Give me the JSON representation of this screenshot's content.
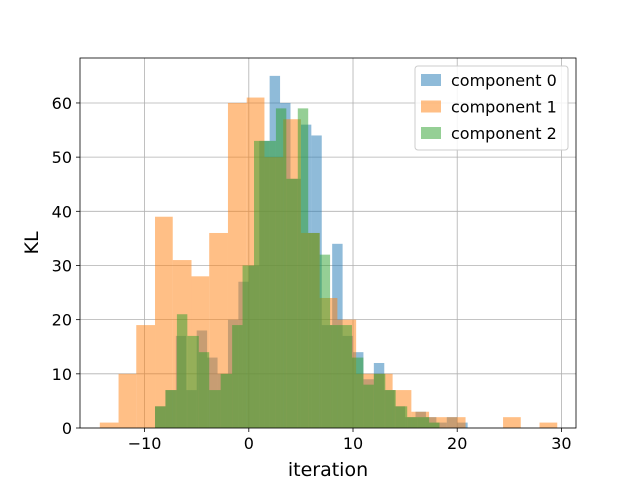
{
  "chart_data": {
    "type": "bar",
    "subtype": "overlaid-histogram",
    "title": "",
    "xlabel": "iteration",
    "ylabel": "KL",
    "xlim": [
      -16.2,
      31.4
    ],
    "ylim": [
      0,
      68.3
    ],
    "xticks": [
      -10,
      0,
      10,
      20,
      30
    ],
    "yticks": [
      0,
      10,
      20,
      30,
      40,
      50,
      60
    ],
    "grid": true,
    "legend_position": "top-right",
    "opacity": 0.5,
    "series": [
      {
        "name": "component 0",
        "color": "#1f77b4",
        "bins": [
          [
            -9.0,
            -8.0,
            4
          ],
          [
            -8.0,
            -7.0,
            7
          ],
          [
            -7.0,
            -6.0,
            17
          ],
          [
            -6.0,
            -5.0,
            7
          ],
          [
            -5.0,
            -4.0,
            18
          ],
          [
            -4.0,
            -3.0,
            13
          ],
          [
            -3.0,
            -2.0,
            10
          ],
          [
            -2.0,
            -1.0,
            20
          ],
          [
            -1.0,
            0.0,
            27
          ],
          [
            0.0,
            1.0,
            30
          ],
          [
            1.0,
            2.0,
            53
          ],
          [
            2.0,
            3.0,
            65
          ],
          [
            3.0,
            4.0,
            60
          ],
          [
            4.0,
            5.0,
            46
          ],
          [
            5.0,
            6.0,
            56
          ],
          [
            6.0,
            7.0,
            54
          ],
          [
            7.0,
            8.0,
            19
          ],
          [
            8.0,
            9.0,
            34
          ],
          [
            9.0,
            10.0,
            17
          ],
          [
            10.0,
            11.0,
            14
          ],
          [
            11.0,
            12.0,
            9
          ],
          [
            12.0,
            13.0,
            12
          ],
          [
            13.0,
            14.0,
            7
          ],
          [
            14.0,
            15.0,
            4
          ],
          [
            15.0,
            16.0,
            2
          ],
          [
            16.0,
            17.0,
            3
          ],
          [
            17.0,
            18.0,
            2
          ],
          [
            18.0,
            19.0,
            1
          ],
          [
            19.0,
            20.0,
            2
          ],
          [
            20.0,
            21.0,
            1
          ]
        ]
      },
      {
        "name": "component 1",
        "color": "#ff7f0e",
        "bins": [
          [
            -14.3,
            -12.5,
            1
          ],
          [
            -12.5,
            -10.8,
            10
          ],
          [
            -10.8,
            -9.0,
            19
          ],
          [
            -9.0,
            -7.3,
            39
          ],
          [
            -7.3,
            -5.5,
            31
          ],
          [
            -5.5,
            -3.8,
            28
          ],
          [
            -3.8,
            -2.0,
            36
          ],
          [
            -2.0,
            -0.2,
            60
          ],
          [
            -0.2,
            1.5,
            61
          ],
          [
            1.5,
            3.3,
            50
          ],
          [
            3.3,
            5.0,
            57
          ],
          [
            5.0,
            6.8,
            36
          ],
          [
            6.8,
            8.5,
            24
          ],
          [
            8.5,
            10.3,
            20
          ],
          [
            10.3,
            12.1,
            10
          ],
          [
            12.1,
            13.8,
            10
          ],
          [
            13.8,
            15.6,
            7
          ],
          [
            15.6,
            17.3,
            3
          ],
          [
            17.3,
            19.1,
            2
          ],
          [
            19.1,
            20.8,
            2
          ],
          [
            24.4,
            26.1,
            2
          ],
          [
            27.9,
            29.6,
            1
          ]
        ]
      },
      {
        "name": "component 2",
        "color": "#2ca02c",
        "bins": [
          [
            -9.0,
            -8.0,
            4
          ],
          [
            -8.0,
            -6.9,
            7
          ],
          [
            -6.9,
            -5.9,
            21
          ],
          [
            -5.9,
            -4.8,
            17
          ],
          [
            -4.8,
            -3.8,
            14
          ],
          [
            -3.8,
            -2.7,
            7
          ],
          [
            -2.7,
            -1.6,
            10
          ],
          [
            -1.6,
            -0.6,
            19
          ],
          [
            -0.6,
            0.5,
            30
          ],
          [
            0.5,
            1.5,
            53
          ],
          [
            1.5,
            2.6,
            53
          ],
          [
            2.6,
            3.6,
            59
          ],
          [
            3.6,
            4.7,
            46
          ],
          [
            4.7,
            5.7,
            59
          ],
          [
            5.7,
            6.8,
            36
          ],
          [
            6.8,
            7.8,
            32
          ],
          [
            7.8,
            8.9,
            19
          ],
          [
            8.9,
            9.9,
            19
          ],
          [
            9.9,
            11.0,
            13
          ],
          [
            11.0,
            12.0,
            8
          ],
          [
            12.0,
            13.1,
            10
          ],
          [
            13.1,
            14.1,
            7
          ],
          [
            14.1,
            15.2,
            4
          ],
          [
            15.2,
            16.2,
            2
          ],
          [
            16.2,
            17.3,
            2
          ],
          [
            17.3,
            18.3,
            1
          ]
        ]
      }
    ]
  }
}
